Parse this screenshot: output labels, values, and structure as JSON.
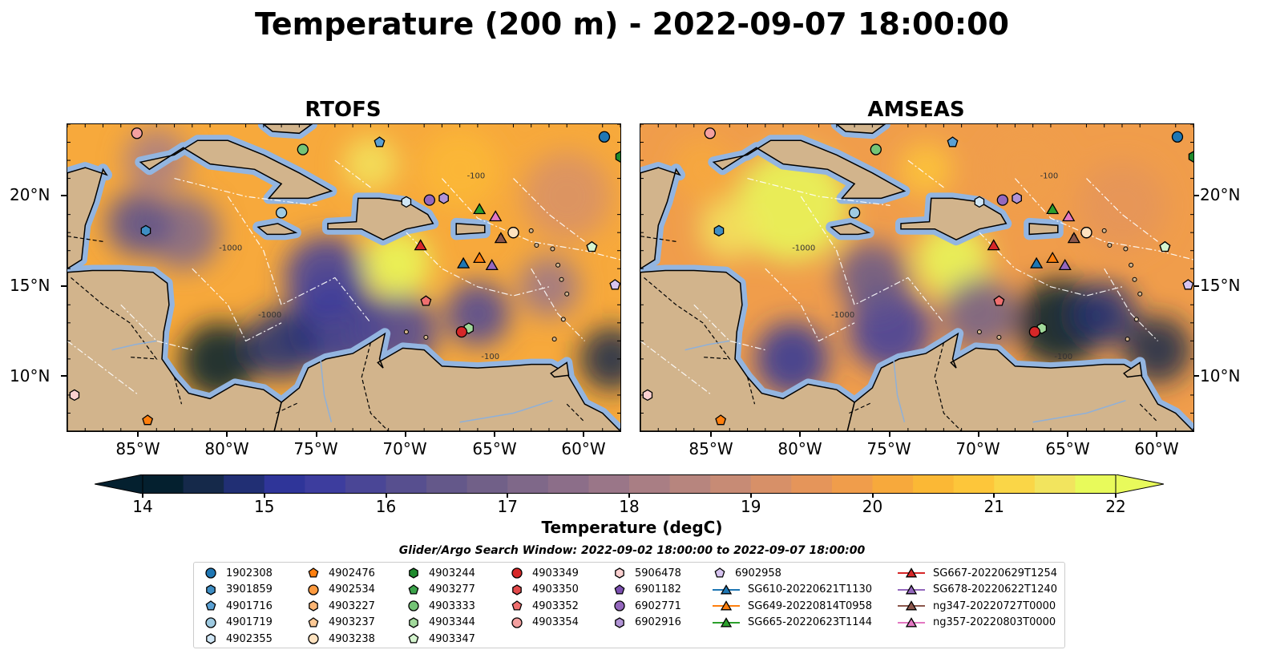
{
  "title": "Temperature (200 m) - 2022-09-07 18:00:00",
  "panels": [
    {
      "title": "RTOFS",
      "model": "rtofs"
    },
    {
      "title": "AMSEAS",
      "model": "amseas"
    }
  ],
  "map": {
    "lon_range": [
      -89,
      -58
    ],
    "lat_range": [
      7,
      24
    ],
    "lat_ticks": [
      {
        "value": 20,
        "label": "20°N"
      },
      {
        "value": 15,
        "label": "15°N"
      },
      {
        "value": 10,
        "label": "10°N"
      }
    ],
    "lon_ticks": [
      {
        "value": -85,
        "label": "85°W"
      },
      {
        "value": -80,
        "label": "80°W"
      },
      {
        "value": -75,
        "label": "75°W"
      },
      {
        "value": -70,
        "label": "70°W"
      },
      {
        "value": -65,
        "label": "65°W"
      },
      {
        "value": -60,
        "label": "60°W"
      }
    ],
    "contour_labels": [
      "-100",
      "-1000"
    ],
    "colors": {
      "land": "#d2b48c",
      "shallow_water": "#93b5e0",
      "coastline": "#000000"
    }
  },
  "colorbar": {
    "label": "Temperature (degC)",
    "min": 14,
    "max": 22,
    "extend": "both",
    "ticks": [
      "14",
      "15",
      "16",
      "17",
      "18",
      "19",
      "20",
      "21",
      "22"
    ],
    "colormap": "thermal",
    "colors": [
      "#04202f",
      "#15294a",
      "#212f74",
      "#2f3599",
      "#3d3d9e",
      "#4a4696",
      "#574f8f",
      "#64588a",
      "#716088",
      "#7f6889",
      "#8c6e89",
      "#9a7688",
      "#a97e84",
      "#b7857e",
      "#c78b75",
      "#d79068",
      "#e5955a",
      "#f09d4b",
      "#f7a93c",
      "#fbb835",
      "#fdc63a",
      "#fad647",
      "#f2e45e",
      "#e8fa5b"
    ]
  },
  "search_window": "Glider/Argo Search Window: 2022-09-02 18:00:00 to 2022-09-07 18:00:00",
  "legend": {
    "items": [
      {
        "label": "1902308",
        "marker": "circle",
        "color": "#1f77b4"
      },
      {
        "label": "3901859",
        "marker": "hexagon",
        "color": "#3e8ec4"
      },
      {
        "label": "4901716",
        "marker": "pentagon",
        "color": "#5aa0d3"
      },
      {
        "label": "4901719",
        "marker": "circle",
        "color": "#9ecae1"
      },
      {
        "label": "4902355",
        "marker": "hexagon",
        "color": "#d0e6f5"
      },
      {
        "label": "4902476",
        "marker": "pentagon",
        "color": "#ff7f0e"
      },
      {
        "label": "4902534",
        "marker": "circle",
        "color": "#fd9a3f"
      },
      {
        "label": "4903227",
        "marker": "hexagon",
        "color": "#fdb574"
      },
      {
        "label": "4903237",
        "marker": "pentagon",
        "color": "#fdc995"
      },
      {
        "label": "4903238",
        "marker": "circle",
        "color": "#fee2bf"
      },
      {
        "label": "4903244",
        "marker": "hexagon",
        "color": "#1e8a2c"
      },
      {
        "label": "4903277",
        "marker": "pentagon",
        "color": "#3ca34a"
      },
      {
        "label": "4903333",
        "marker": "circle",
        "color": "#74c476"
      },
      {
        "label": "4903344",
        "marker": "hexagon",
        "color": "#a1d99b"
      },
      {
        "label": "4903347",
        "marker": "pentagon",
        "color": "#d5f5cf"
      },
      {
        "label": "4903349",
        "marker": "circle",
        "color": "#d62728"
      },
      {
        "label": "4903350",
        "marker": "hexagon",
        "color": "#e34a4b"
      },
      {
        "label": "4903352",
        "marker": "pentagon",
        "color": "#ef6f6f"
      },
      {
        "label": "4903354",
        "marker": "circle",
        "color": "#f4a0a0"
      },
      {
        "label": "5906478",
        "marker": "hexagon",
        "color": "#fbd0d0"
      },
      {
        "label": "6901182",
        "marker": "pentagon",
        "color": "#7b4fb0"
      },
      {
        "label": "6902771",
        "marker": "circle",
        "color": "#9467bd"
      },
      {
        "label": "6902916",
        "marker": "hexagon",
        "color": "#b294d6"
      },
      {
        "label": "6902958",
        "marker": "pentagon",
        "color": "#d7c4f0"
      },
      {
        "label": "SG610-20220621T1130",
        "marker": "triangle",
        "color": "#1f77b4"
      },
      {
        "label": "SG649-20220814T0958",
        "marker": "triangle",
        "color": "#ff7f0e"
      },
      {
        "label": "SG665-20220623T1144",
        "marker": "triangle",
        "color": "#2ca02c"
      },
      {
        "label": "SG667-20220629T1254",
        "marker": "triangle",
        "color": "#d62728"
      },
      {
        "label": "SG678-20220622T1240",
        "marker": "triangle",
        "color": "#9467bd"
      },
      {
        "label": "ng347-20220727T0000",
        "marker": "triangle",
        "color": "#8c564b"
      },
      {
        "label": "ng357-20220803T0000",
        "marker": "triangle",
        "color": "#e377c2"
      }
    ]
  },
  "markers": [
    {
      "id": "1902308",
      "lon": -58.9,
      "lat": 23.3
    },
    {
      "id": "3901859",
      "lon": -84.6,
      "lat": 18.1
    },
    {
      "id": "4901716",
      "lon": -71.5,
      "lat": 23.0
    },
    {
      "id": "4901719",
      "lon": -77.0,
      "lat": 19.1
    },
    {
      "id": "4902355",
      "lon": -70.0,
      "lat": 19.7
    },
    {
      "id": "4902476",
      "lon": -84.5,
      "lat": 7.6
    },
    {
      "id": "4902534",
      "lon": -64.0,
      "lat": 18.0
    },
    {
      "id": "4903237",
      "lon": -59.6,
      "lat": 17.2
    },
    {
      "id": "4903238",
      "lon": -64.0,
      "lat": 18.0
    },
    {
      "id": "4903244",
      "lon": -58.0,
      "lat": 22.2
    },
    {
      "id": "4903333",
      "lon": -75.8,
      "lat": 22.6
    },
    {
      "id": "4903344",
      "lon": -66.5,
      "lat": 12.7
    },
    {
      "id": "4903347",
      "lon": -59.6,
      "lat": 17.2
    },
    {
      "id": "4903349",
      "lon": -66.9,
      "lat": 12.5
    },
    {
      "id": "4903352",
      "lon": -68.9,
      "lat": 14.2
    },
    {
      "id": "4903354",
      "lon": -85.1,
      "lat": 23.5
    },
    {
      "id": "5906478",
      "lon": -88.6,
      "lat": 9.0
    },
    {
      "id": "6902771",
      "lon": -68.7,
      "lat": 19.8
    },
    {
      "id": "6902916",
      "lon": -67.9,
      "lat": 19.9
    },
    {
      "id": "6902958",
      "lon": -58.3,
      "lat": 15.1
    },
    {
      "id": "SG610-20220621T1130",
      "lon": -66.8,
      "lat": 16.3
    },
    {
      "id": "SG649-20220814T0958",
      "lon": -65.9,
      "lat": 16.6
    },
    {
      "id": "SG665-20220623T1144",
      "lon": -65.9,
      "lat": 19.3
    },
    {
      "id": "SG667-20220629T1254",
      "lon": -69.2,
      "lat": 17.3
    },
    {
      "id": "SG678-20220622T1240",
      "lon": -65.2,
      "lat": 16.2
    },
    {
      "id": "ng347-20220727T0000",
      "lon": -64.7,
      "lat": 17.7
    },
    {
      "id": "ng357-20220803T0000",
      "lon": -65.0,
      "lat": 18.9
    }
  ]
}
